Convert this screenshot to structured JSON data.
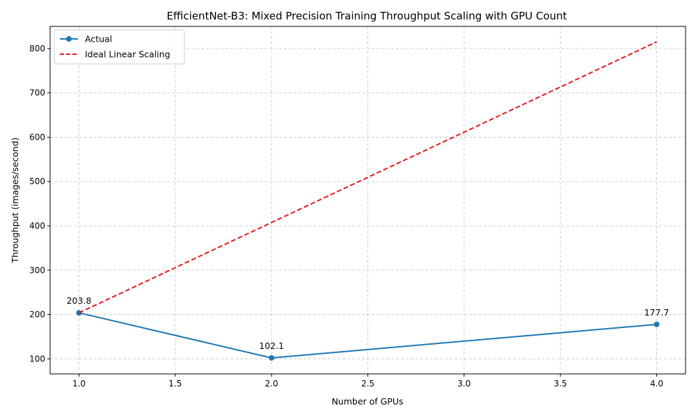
{
  "chart_data": {
    "type": "line",
    "title": "EfficientNet-B3: Mixed Precision Training Throughput Scaling with GPU Count",
    "xlabel": "Number of GPUs",
    "ylabel": "Throughput (images/second)",
    "xlim": [
      0.85,
      4.15
    ],
    "ylim": [
      66,
      850
    ],
    "x_ticks": [
      1.0,
      1.5,
      2.0,
      2.5,
      3.0,
      3.5,
      4.0
    ],
    "x_tick_labels": [
      "1.0",
      "1.5",
      "2.0",
      "2.5",
      "3.0",
      "3.5",
      "4.0"
    ],
    "y_ticks": [
      100,
      200,
      300,
      400,
      500,
      600,
      700,
      800
    ],
    "y_tick_labels": [
      "100",
      "200",
      "300",
      "400",
      "500",
      "600",
      "700",
      "800"
    ],
    "grid": true,
    "legend_position": "top-left",
    "series": [
      {
        "name": "Actual",
        "x": [
          1,
          2,
          4
        ],
        "values": [
          203.8,
          102.1,
          177.7
        ],
        "data_labels": [
          "203.8",
          "102.1",
          "177.7"
        ],
        "color": "#1f77b4",
        "style": "solid",
        "marker": "circle"
      },
      {
        "name": "Ideal Linear Scaling",
        "x": [
          1,
          2,
          4
        ],
        "values": [
          203.8,
          407.6,
          815.2
        ],
        "color": "#e41a1c",
        "style": "dashed",
        "marker": "none"
      }
    ]
  }
}
